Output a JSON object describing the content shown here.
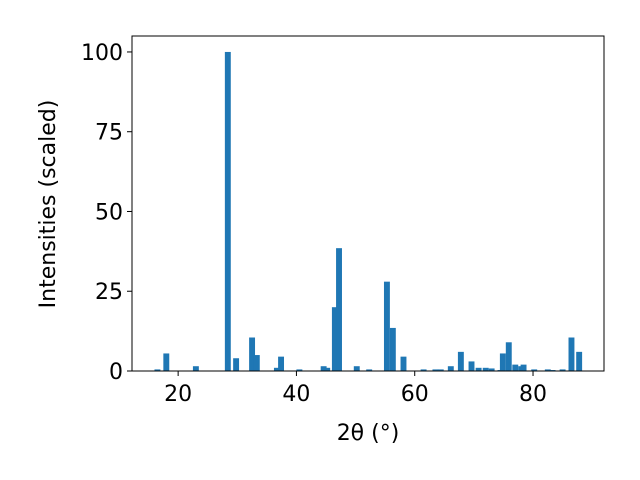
{
  "chart_data": {
    "type": "bar",
    "x_label": "2θ (°)",
    "y_label": "Intensities (scaled)",
    "x": [
      16.5,
      18.0,
      23.0,
      28.4,
      29.8,
      32.5,
      33.3,
      36.7,
      37.4,
      40.5,
      44.6,
      45.2,
      46.5,
      47.2,
      50.2,
      52.3,
      55.3,
      56.3,
      58.1,
      61.5,
      63.5,
      64.4,
      66.1,
      67.8,
      69.6,
      70.8,
      72.0,
      73.0,
      74.5,
      74.9,
      75.9,
      77.0,
      78.0,
      78.4,
      80.2,
      82.5,
      83.3,
      85.0,
      86.5,
      87.8
    ],
    "values": [
      0.5,
      5.5,
      1.5,
      100,
      4,
      10.5,
      5,
      1,
      4.5,
      0.5,
      1.5,
      1,
      20,
      38.5,
      1.5,
      0.5,
      28,
      13.5,
      4.5,
      0.5,
      0.5,
      0.5,
      1.5,
      6,
      3,
      1,
      1,
      0.8,
      0.3,
      5.5,
      9,
      2,
      1.5,
      2,
      0.5,
      0.5,
      0.3,
      0.5,
      10.5,
      6
    ],
    "bar_width": 1,
    "color": "#1f77b4",
    "xlim": [
      12.2,
      92.0
    ],
    "ylim": [
      0,
      105
    ],
    "xticks": [
      20,
      40,
      60,
      80
    ],
    "yticks": [
      0,
      25,
      50,
      75,
      100
    ]
  }
}
